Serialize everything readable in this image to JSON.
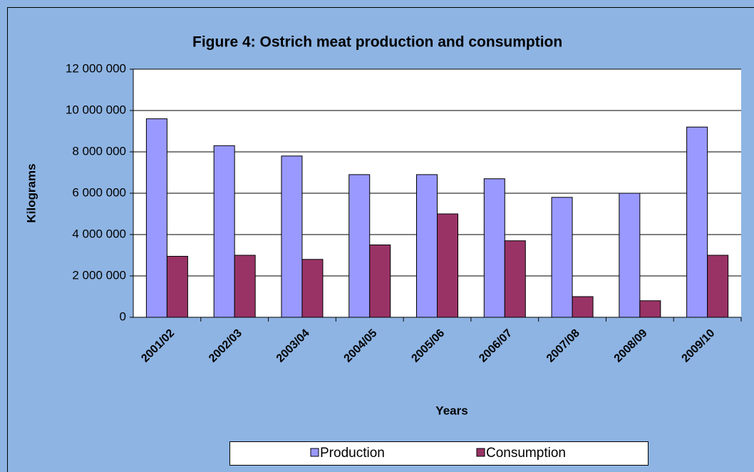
{
  "chart_data": {
    "type": "bar",
    "title": "Figure 4: Ostrich meat production and consumption",
    "x_label": "Years",
    "y_label": "Kilograms",
    "categories": [
      "2001/02",
      "2002/03",
      "2003/04",
      "2004/05",
      "2005/06",
      "2006/07",
      "2007/08",
      "2008/09",
      "2009/10"
    ],
    "series": [
      {
        "name": "Production",
        "color": "#9999ff",
        "values": [
          9600000,
          8300000,
          7800000,
          6900000,
          6900000,
          6700000,
          5800000,
          6000000,
          9200000
        ]
      },
      {
        "name": "Consumption",
        "color": "#993366",
        "values": [
          2950000,
          3000000,
          2800000,
          3500000,
          5000000,
          3700000,
          1000000,
          800000,
          3000000
        ]
      }
    ],
    "ylim": [
      0,
      12000000
    ],
    "yticks": [
      {
        "value": 0,
        "label": "0"
      },
      {
        "value": 2000000,
        "label": "2 000 000"
      },
      {
        "value": 4000000,
        "label": "4 000 000"
      },
      {
        "value": 6000000,
        "label": "6 000 000"
      },
      {
        "value": 8000000,
        "label": "8 000 000"
      },
      {
        "value": 10000000,
        "label": "10 000 000"
      },
      {
        "value": 12000000,
        "label": "12 000 000"
      }
    ],
    "grid": true,
    "legend": "bottom"
  }
}
